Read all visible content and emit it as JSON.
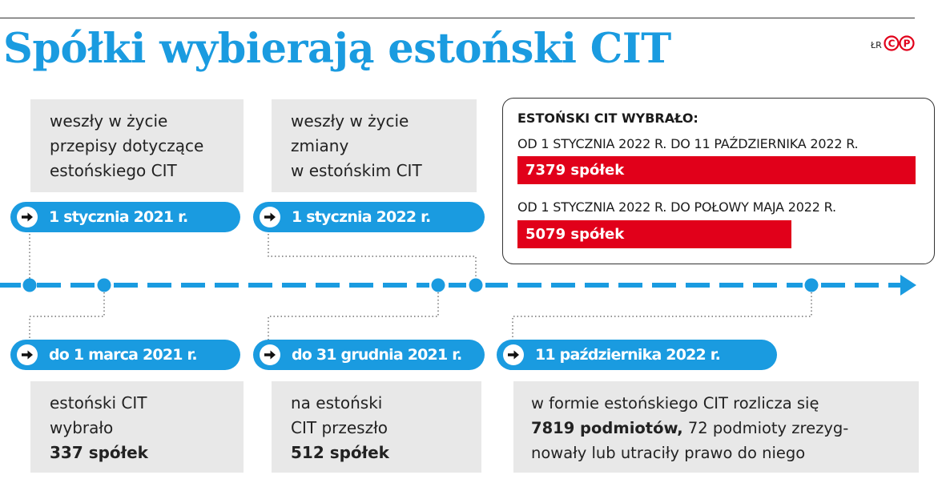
{
  "title": "Spółki wybierają estoński CIT",
  "credit": {
    "text": "ŁR",
    "logo": "CP logo"
  },
  "colors": {
    "accent_blue": "#1a9be0",
    "red": "#e1001a",
    "note_gray": "#e8e8e8"
  },
  "events": {
    "top": [
      {
        "date": "1 stycznia 2021 r.",
        "lines": [
          "weszły w życie",
          "przepisy dotyczące",
          "estońskiego CIT"
        ]
      },
      {
        "date": "1 stycznia 2022 r.",
        "lines": [
          "weszły w życie",
          "zmiany",
          "w estońskim CIT"
        ]
      }
    ],
    "bottom": [
      {
        "date": "do 1 marca 2021 r.",
        "lines": [
          "estoński CIT",
          "wybrało"
        ],
        "highlight": "337 spółek"
      },
      {
        "date": "do 31 grudnia 2021 r.",
        "lines": [
          "na estoński",
          "CIT przeszło"
        ],
        "highlight": "512 spółek"
      },
      {
        "date": "11 października 2022 r.",
        "line1": "w formie estońskiego CIT rozlicza się",
        "highlight": "7819 podmiotów,",
        "line2_rest": " 72 podmioty zrezyg-",
        "line3": "nowały lub utraciły prawo do niego"
      }
    ]
  },
  "infobox": {
    "heading": "ESTOŃSKI CIT WYBRAŁO:",
    "rows": [
      {
        "period": "OD 1 STYCZNIA 2022 R. DO 11 PAŹDZIERNIKA 2022 R.",
        "label": "7379 spółek",
        "value": 7379
      },
      {
        "period": "OD 1 STYCZNIA 2022 R. DO POŁOWY MAJA 2022 R.",
        "label": "5079 spółek",
        "value": 5079
      }
    ]
  }
}
